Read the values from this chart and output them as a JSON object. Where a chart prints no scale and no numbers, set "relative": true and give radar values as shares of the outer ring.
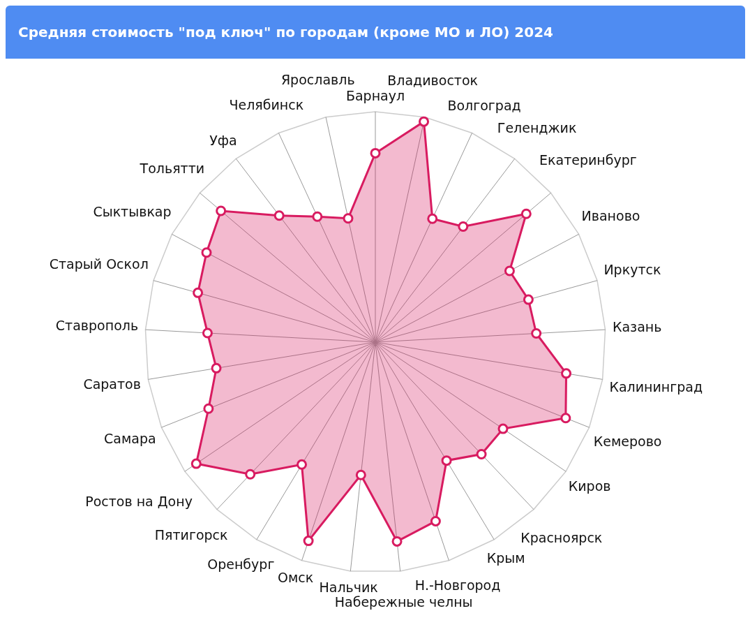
{
  "chart_data": {
    "type": "radar",
    "title": "Средняя стоимость \"под ключ\" по городам (кроме МО и ЛО) 2024",
    "categories": [
      "Барнаул",
      "Владивосток",
      "Волгоград",
      "Геленджик",
      "Екатеринбург",
      "Иваново",
      "Иркутск",
      "Казань",
      "Калининград",
      "Кемерово",
      "Киров",
      "Красноярск",
      "Крым",
      "Н.-Новгород",
      "Набережные челны",
      "Нальчик",
      "Омск",
      "Оренбург",
      "Пятигорск",
      "Ростов на Дону",
      "Самара",
      "Саратов",
      "Ставрополь",
      "Старый Оскол",
      "Сыктывкар",
      "Тольятти",
      "Уфа",
      "Челябинск",
      "Ярославль"
    ],
    "series": [
      {
        "color": "#d81b60",
        "values": [
          0.82,
          0.98,
          0.59,
          0.63,
          0.86,
          0.66,
          0.69,
          0.7,
          0.84,
          0.89,
          0.67,
          0.67,
          0.6,
          0.82,
          0.87,
          0.58,
          0.91,
          0.62,
          0.79,
          0.94,
          0.78,
          0.7,
          0.73,
          0.8,
          0.83,
          0.88,
          0.69,
          0.6,
          0.55
        ]
      }
    ],
    "relative": true,
    "marker": "circle",
    "grid": true
  }
}
